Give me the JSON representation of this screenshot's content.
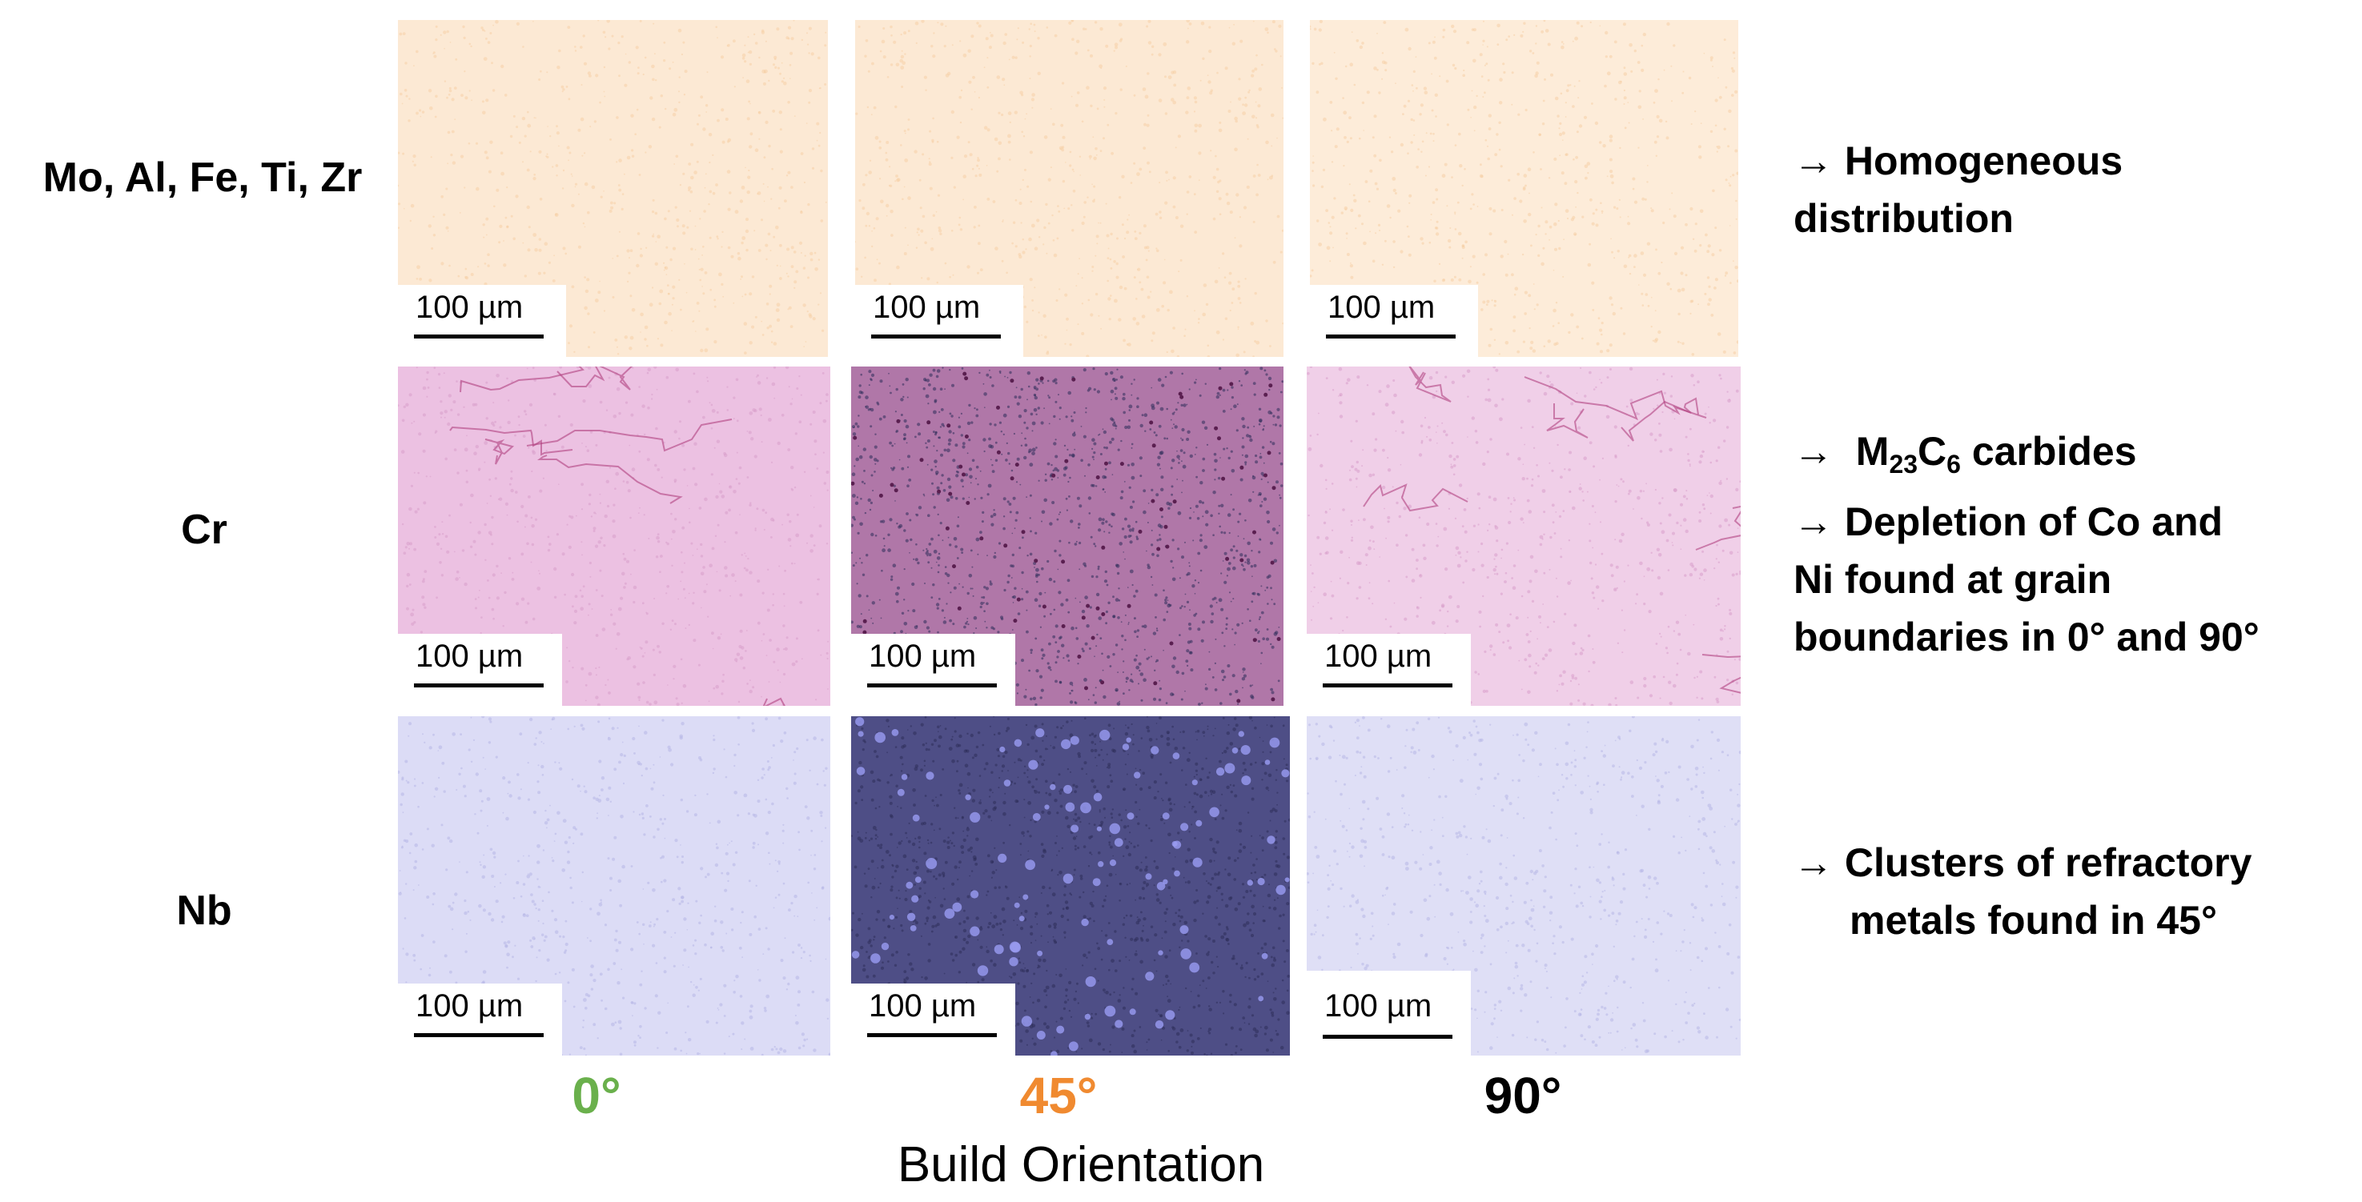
{
  "rows": [
    {
      "label": "Mo, Al, Fe, Ti, Zr",
      "note_lines": [
        "→ Homogeneous",
        "distribution"
      ]
    },
    {
      "label": "Cr",
      "note_lines": [
        "→  carbides",
        "→ Depletion of Co and",
        "Ni found at grain",
        "boundaries in 0° and 90°"
      ],
      "carbide_formula": {
        "m": "M",
        "m_sub": "23",
        "c": "C",
        "c_sub": "6"
      }
    },
    {
      "label": "Nb",
      "note_lines": [
        "→ Clusters of refractory",
        "metals found in 45°"
      ]
    }
  ],
  "columns": [
    {
      "label": "0°",
      "color": "#6ab04c"
    },
    {
      "label": "45°",
      "color": "#f08a30"
    },
    {
      "label": "90°",
      "color": "#000000"
    }
  ],
  "axis_title": "Build Orientation",
  "scale_bar_label": "100 µm",
  "map_colors": {
    "row0": [
      "#fce9d4",
      "#fce9d4",
      "#fdecd9"
    ],
    "row1": [
      "#ecc1e2",
      "#b077a8",
      "#f0cfe8"
    ],
    "row2": [
      "#dcdcf6",
      "#4e4e86",
      "#dfdff6"
    ]
  }
}
